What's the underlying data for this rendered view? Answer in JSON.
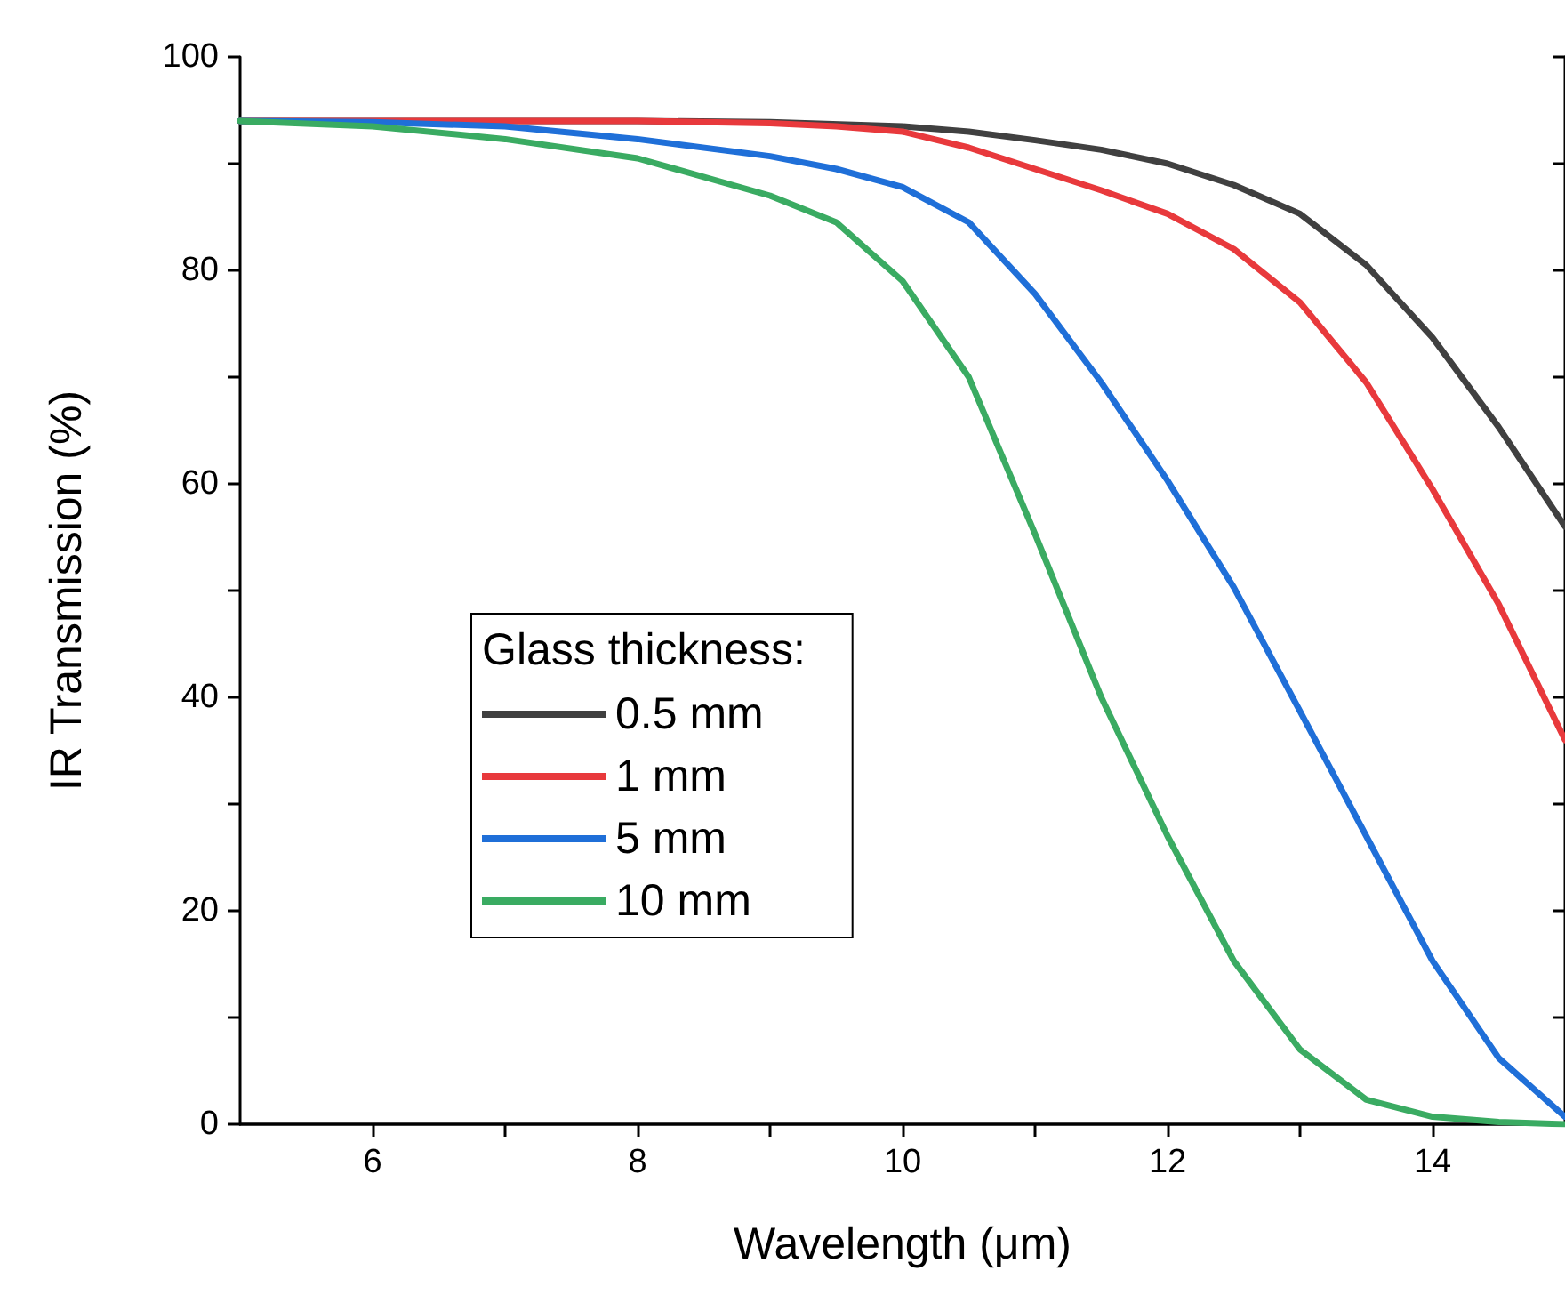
{
  "chart_data": {
    "type": "line",
    "xlabel": "Wavelength (μm)",
    "ylabel": "IR Transmission (%)",
    "legend_title": "Glass thickness:",
    "xlim": [
      5,
      15
    ],
    "xticks": [
      6,
      {
        "value": 7,
        "label": null
      },
      8,
      {
        "value": 9,
        "label": null
      },
      10,
      {
        "value": 11,
        "label": null
      },
      12,
      {
        "value": 13,
        "label": null
      },
      14
    ],
    "ylim": [
      0,
      100
    ],
    "yticks": [
      0,
      {
        "value": 10,
        "label": null
      },
      20,
      {
        "value": 30,
        "label": null
      },
      40,
      {
        "value": 50,
        "label": null
      },
      60,
      {
        "value": 70,
        "label": null
      },
      80,
      {
        "value": 90,
        "label": null
      },
      100
    ],
    "grid": false,
    "legend": "center left",
    "marker": "none",
    "line_style": "solid",
    "series": [
      {
        "name": "0.5 mm",
        "color": "#404040",
        "x": [
          5,
          6,
          7,
          8,
          9,
          10,
          10.5,
          11,
          11.5,
          12,
          12.5,
          13,
          13.5,
          14,
          14.5,
          15
        ],
        "values": [
          94,
          94,
          94,
          94,
          93.9,
          93.5,
          93,
          92.2,
          91.3,
          90,
          88,
          85.3,
          80.5,
          73.7,
          65.3,
          56
        ]
      },
      {
        "name": "1 mm",
        "color": "#e8393c",
        "x": [
          5,
          6,
          7,
          8,
          9,
          9.5,
          10,
          10.5,
          11,
          11.5,
          12,
          12.5,
          13,
          13.5,
          14,
          14.5,
          15
        ],
        "values": [
          94,
          94,
          94,
          94,
          93.8,
          93.5,
          93,
          91.5,
          89.5,
          87.5,
          85.3,
          82,
          77,
          69.5,
          59.5,
          48.7,
          36
        ]
      },
      {
        "name": "5 mm",
        "color": "#1f6fd8",
        "x": [
          5,
          6,
          7,
          8,
          9,
          9.5,
          10,
          10.5,
          11,
          11.5,
          12,
          12.5,
          13,
          13.5,
          14,
          14.5,
          15
        ],
        "values": [
          94,
          93.9,
          93.5,
          92.3,
          90.7,
          89.5,
          87.8,
          84.5,
          77.8,
          69.5,
          60.3,
          50.3,
          38.7,
          27,
          15.3,
          6.2,
          0.7
        ]
      },
      {
        "name": "10 mm",
        "color": "#3aab62",
        "x": [
          5,
          6,
          7,
          8,
          9,
          9.5,
          10,
          10.5,
          11,
          11.5,
          12,
          12.5,
          13,
          13.5,
          14,
          14.5,
          15
        ],
        "values": [
          94,
          93.5,
          92.3,
          90.5,
          87,
          84.5,
          79,
          70,
          55.3,
          40,
          27,
          15.3,
          7,
          2.3,
          0.7,
          0.2,
          0
        ]
      }
    ]
  }
}
